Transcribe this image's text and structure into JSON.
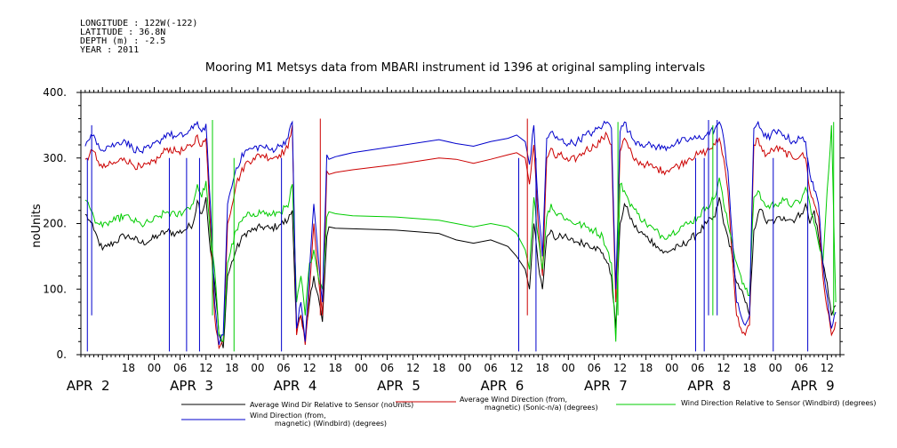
{
  "metadata": [
    "LONGITUDE : 122W(-122)",
    "LATITUDE : 36.8N",
    "DEPTH (m) : -2.5",
    "YEAR : 2011"
  ],
  "chart_data": {
    "type": "line",
    "title": "Mooring M1 Metsys data from MBARI instrument id 1396 at original sampling intervals",
    "ylabel": "noUnits",
    "xlabel": "",
    "ylim": [
      0,
      400
    ],
    "y_ticks": [
      {
        "value": 0,
        "label": "0."
      },
      {
        "value": 100,
        "label": "100."
      },
      {
        "value": 200,
        "label": "200."
      },
      {
        "value": 300,
        "label": "300."
      },
      {
        "value": 400,
        "label": "400."
      }
    ],
    "x_unit": "hours since APR 2 00:00",
    "xlim": [
      7,
      183
    ],
    "x_hour_ticks": [
      {
        "x": 18,
        "label": "18"
      },
      {
        "x": 24,
        "label": "00"
      },
      {
        "x": 30,
        "label": "06"
      },
      {
        "x": 36,
        "label": "12"
      },
      {
        "x": 42,
        "label": "18"
      },
      {
        "x": 48,
        "label": "00"
      },
      {
        "x": 54,
        "label": "06"
      },
      {
        "x": 60,
        "label": "12"
      },
      {
        "x": 66,
        "label": "18"
      },
      {
        "x": 72,
        "label": "00"
      },
      {
        "x": 78,
        "label": "06"
      },
      {
        "x": 84,
        "label": "12"
      },
      {
        "x": 90,
        "label": "18"
      },
      {
        "x": 96,
        "label": "00"
      },
      {
        "x": 102,
        "label": "06"
      },
      {
        "x": 108,
        "label": "12"
      },
      {
        "x": 114,
        "label": "18"
      },
      {
        "x": 120,
        "label": "00"
      },
      {
        "x": 126,
        "label": "06"
      },
      {
        "x": 132,
        "label": "12"
      },
      {
        "x": 138,
        "label": "18"
      },
      {
        "x": 144,
        "label": "00"
      },
      {
        "x": 150,
        "label": "06"
      },
      {
        "x": 156,
        "label": "12"
      },
      {
        "x": 162,
        "label": "18"
      },
      {
        "x": 168,
        "label": "00"
      },
      {
        "x": 174,
        "label": "06"
      },
      {
        "x": 180,
        "label": "12"
      }
    ],
    "day_labels": [
      {
        "x": 9,
        "label": "APR  2"
      },
      {
        "x": 33,
        "label": "APR  3"
      },
      {
        "x": 57,
        "label": "APR  4"
      },
      {
        "x": 81,
        "label": "APR  5"
      },
      {
        "x": 105,
        "label": "APR  6"
      },
      {
        "x": 129,
        "label": "APR  7"
      },
      {
        "x": 153,
        "label": "APR  8"
      },
      {
        "x": 177,
        "label": "APR  9"
      }
    ],
    "gap": [
      63.5,
      111.5
    ],
    "series": [
      {
        "name": "Average Wind Dir Relative to Sensor (noUnits)",
        "color": "#000000",
        "x": [
          8,
          9,
          10,
          11,
          12,
          13,
          15,
          17,
          19,
          21,
          23,
          25,
          27,
          29,
          31,
          33,
          34,
          35,
          36,
          37,
          38,
          39,
          40,
          41,
          43,
          45,
          47,
          49,
          51,
          53,
          55,
          56,
          57,
          58,
          59,
          60,
          61,
          62,
          63,
          64,
          64.5,
          66,
          70,
          80,
          90,
          94,
          98,
          102,
          106,
          108,
          110,
          111,
          112,
          113,
          114,
          115,
          116,
          117,
          118,
          120,
          122,
          124,
          126,
          128,
          129,
          130,
          131,
          132,
          133,
          134,
          135,
          136,
          138,
          140,
          142,
          144,
          146,
          148,
          150,
          152,
          154,
          155,
          156,
          157,
          158,
          159,
          160,
          161,
          162,
          163,
          164,
          165,
          166,
          168,
          170,
          172,
          174,
          175,
          176,
          177,
          178,
          179,
          180,
          181,
          182
        ],
        "y": [
          214,
          205,
          190,
          175,
          160,
          165,
          172,
          182,
          178,
          170,
          174,
          182,
          188,
          185,
          190,
          200,
          235,
          215,
          240,
          160,
          110,
          30,
          10,
          120,
          160,
          185,
          190,
          195,
          192,
          198,
          205,
          220,
          40,
          60,
          20,
          80,
          120,
          90,
          50,
          180,
          195,
          193,
          192,
          190,
          185,
          175,
          170,
          175,
          165,
          150,
          130,
          100,
          200,
          140,
          100,
          180,
          190,
          175,
          185,
          175,
          172,
          170,
          165,
          155,
          140,
          120,
          40,
          200,
          230,
          215,
          200,
          190,
          180,
          170,
          155,
          160,
          165,
          175,
          185,
          200,
          210,
          240,
          200,
          180,
          150,
          110,
          100,
          80,
          60,
          190,
          215,
          220,
          200,
          205,
          210,
          205,
          215,
          230,
          200,
          220,
          180,
          140,
          110,
          60,
          75
        ]
      },
      {
        "name": "Average Wind Direction (from, magnetic) (Sonic-n/a) (degrees)",
        "color": "#cc0000",
        "x": [
          8,
          9,
          10,
          11,
          12,
          13,
          15,
          17,
          19,
          21,
          23,
          25,
          27,
          29,
          31,
          33,
          34,
          35,
          36,
          37,
          38,
          39,
          40,
          41,
          43,
          45,
          47,
          49,
          51,
          53,
          55,
          56,
          57,
          58,
          59,
          60,
          61,
          62,
          63,
          64,
          64.5,
          66,
          70,
          80,
          90,
          94,
          98,
          102,
          106,
          108,
          110,
          111,
          112,
          113,
          114,
          115,
          116,
          117,
          118,
          120,
          122,
          124,
          126,
          128,
          129,
          130,
          131,
          132,
          133,
          134,
          135,
          136,
          138,
          140,
          142,
          144,
          146,
          148,
          150,
          152,
          154,
          155,
          156,
          157,
          158,
          159,
          160,
          161,
          162,
          163,
          164,
          165,
          166,
          168,
          170,
          172,
          174,
          175,
          176,
          177,
          178,
          179,
          180,
          181,
          182
        ],
        "y": [
          298,
          305,
          310,
          295,
          285,
          288,
          292,
          300,
          290,
          285,
          290,
          300,
          315,
          310,
          312,
          320,
          335,
          318,
          330,
          200,
          60,
          10,
          20,
          200,
          260,
          290,
          300,
          305,
          300,
          305,
          315,
          350,
          30,
          60,
          15,
          100,
          200,
          120,
          60,
          280,
          275,
          278,
          282,
          290,
          300,
          298,
          292,
          298,
          305,
          308,
          300,
          260,
          320,
          200,
          120,
          300,
          315,
          300,
          305,
          295,
          300,
          312,
          318,
          330,
          335,
          320,
          80,
          310,
          330,
          315,
          300,
          295,
          290,
          285,
          280,
          285,
          290,
          300,
          305,
          310,
          320,
          330,
          300,
          250,
          150,
          60,
          40,
          30,
          45,
          320,
          330,
          310,
          305,
          315,
          310,
          300,
          305,
          300,
          250,
          230,
          210,
          120,
          70,
          30,
          50
        ]
      },
      {
        "name": "Wind Direction Relative to Sensor (Windbird) (degrees)",
        "color": "#00cc00",
        "x": [
          8,
          9,
          10,
          11,
          12,
          13,
          15,
          17,
          19,
          21,
          23,
          25,
          27,
          29,
          31,
          33,
          34,
          35,
          36,
          37,
          38,
          39,
          40,
          41,
          43,
          45,
          47,
          49,
          51,
          53,
          55,
          56,
          57,
          58,
          59,
          60,
          61,
          62,
          63,
          64,
          64.5,
          66,
          70,
          80,
          90,
          94,
          98,
          102,
          106,
          108,
          110,
          111,
          112,
          113,
          114,
          115,
          116,
          117,
          118,
          120,
          122,
          124,
          126,
          128,
          129,
          130,
          131,
          132,
          133,
          134,
          135,
          136,
          138,
          140,
          142,
          144,
          146,
          148,
          150,
          152,
          154,
          155,
          156,
          157,
          158,
          159,
          160,
          161,
          162,
          163,
          164,
          165,
          166,
          168,
          170,
          172,
          174,
          175,
          176,
          177,
          178,
          179,
          180,
          181,
          182
        ],
        "y": [
          236,
          225,
          210,
          200,
          195,
          200,
          205,
          212,
          205,
          198,
          202,
          210,
          218,
          212,
          220,
          230,
          260,
          240,
          265,
          180,
          130,
          30,
          20,
          140,
          190,
          210,
          215,
          218,
          212,
          218,
          225,
          260,
          80,
          120,
          60,
          140,
          160,
          120,
          100,
          210,
          218,
          215,
          212,
          210,
          205,
          200,
          195,
          200,
          195,
          185,
          160,
          130,
          240,
          180,
          130,
          210,
          230,
          215,
          215,
          205,
          200,
          195,
          190,
          180,
          160,
          140,
          20,
          260,
          250,
          235,
          225,
          215,
          200,
          190,
          180,
          185,
          195,
          200,
          210,
          225,
          240,
          270,
          230,
          200,
          170,
          140,
          120,
          100,
          90,
          240,
          250,
          235,
          225,
          230,
          235,
          228,
          235,
          255,
          230,
          200,
          170,
          140,
          250,
          350,
          80
        ]
      },
      {
        "name": "Wind Direction (from, magnetic) (Windbird) (degrees)",
        "color": "#0000cc",
        "x": [
          8,
          9,
          10,
          11,
          12,
          13,
          15,
          17,
          19,
          21,
          23,
          25,
          27,
          29,
          31,
          33,
          34,
          35,
          36,
          37,
          38,
          39,
          40,
          41,
          43,
          45,
          47,
          49,
          51,
          53,
          55,
          56,
          57,
          58,
          59,
          60,
          61,
          62,
          63,
          64,
          64.5,
          66,
          70,
          80,
          90,
          94,
          98,
          102,
          106,
          108,
          110,
          111,
          112,
          113,
          114,
          115,
          116,
          117,
          118,
          120,
          122,
          124,
          126,
          128,
          129,
          130,
          131,
          132,
          133,
          134,
          135,
          136,
          138,
          140,
          142,
          144,
          146,
          148,
          150,
          152,
          154,
          155,
          156,
          157,
          158,
          159,
          160,
          161,
          162,
          163,
          164,
          165,
          166,
          168,
          170,
          172,
          174,
          175,
          176,
          177,
          178,
          179,
          180,
          181,
          182
        ],
        "y": [
          318,
          328,
          335,
          322,
          312,
          318,
          320,
          328,
          315,
          310,
          315,
          325,
          338,
          332,
          335,
          345,
          355,
          340,
          352,
          230,
          80,
          15,
          30,
          230,
          285,
          310,
          315,
          318,
          312,
          318,
          330,
          355,
          40,
          80,
          20,
          130,
          230,
          150,
          80,
          305,
          298,
          302,
          308,
          318,
          328,
          322,
          318,
          325,
          330,
          335,
          325,
          290,
          350,
          230,
          150,
          330,
          340,
          330,
          328,
          322,
          325,
          335,
          340,
          350,
          355,
          345,
          100,
          340,
          355,
          340,
          328,
          325,
          320,
          318,
          315,
          320,
          325,
          328,
          330,
          335,
          345,
          355,
          330,
          280,
          180,
          80,
          60,
          45,
          60,
          345,
          355,
          340,
          330,
          340,
          335,
          325,
          330,
          325,
          275,
          250,
          230,
          140,
          90,
          40,
          65
        ]
      }
    ],
    "spikes": [
      {
        "x": 8.5,
        "y": 5,
        "color": "#0000cc"
      },
      {
        "x": 27.5,
        "y": 5,
        "color": "#0000cc"
      },
      {
        "x": 31.5,
        "y": 5,
        "color": "#0000cc"
      },
      {
        "x": 34.5,
        "y": 5,
        "color": "#0000cc"
      },
      {
        "x": 53.5,
        "y": 5,
        "color": "#0000cc"
      },
      {
        "x": 108.5,
        "y": 5,
        "color": "#0000cc"
      },
      {
        "x": 112.5,
        "y": 5,
        "color": "#0000cc"
      },
      {
        "x": 149.5,
        "y": 5,
        "color": "#0000cc"
      },
      {
        "x": 151.5,
        "y": 5,
        "color": "#0000cc"
      },
      {
        "x": 167.5,
        "y": 5,
        "color": "#0000cc"
      },
      {
        "x": 175.5,
        "y": 5,
        "color": "#0000cc"
      },
      {
        "x": 9.5,
        "y": 350,
        "color": "#0000cc"
      },
      {
        "x": 152.5,
        "y": 358,
        "color": "#0000cc"
      },
      {
        "x": 154.5,
        "y": 358,
        "color": "#0000cc"
      },
      {
        "x": 37.5,
        "y": 358,
        "color": "#00cc00"
      },
      {
        "x": 42.5,
        "y": 5,
        "color": "#00cc00"
      },
      {
        "x": 131.5,
        "y": 355,
        "color": "#00cc00"
      },
      {
        "x": 153.5,
        "y": 350,
        "color": "#00cc00"
      },
      {
        "x": 181.5,
        "y": 355,
        "color": "#00cc00"
      },
      {
        "x": 62.5,
        "y": 360,
        "color": "#cc0000"
      },
      {
        "x": 110.5,
        "y": 360,
        "color": "#cc0000"
      }
    ]
  }
}
